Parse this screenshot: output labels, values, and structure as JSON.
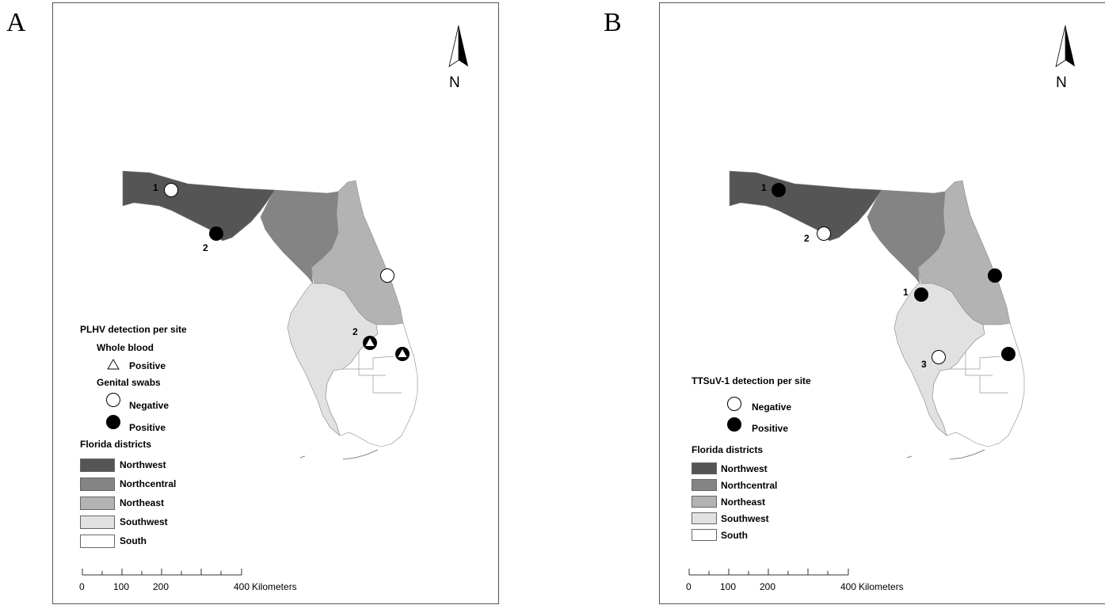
{
  "panels": [
    {
      "letter": "A",
      "north_label": "N",
      "legend": {
        "title": "PLHV detection per site",
        "groups": [
          {
            "heading": "Whole blood",
            "items": [
              {
                "symbol": "triangle-open",
                "label": "Positive"
              }
            ]
          },
          {
            "heading": "Genital swabs",
            "items": [
              {
                "symbol": "circle-open",
                "label": "Negative"
              },
              {
                "symbol": "circle-filled",
                "label": "Positive"
              }
            ]
          }
        ],
        "districts_title": "Florida districts",
        "districts": [
          "Northwest",
          "Northcentral",
          "Northeast",
          "Southwest",
          "South"
        ]
      },
      "scale": {
        "ticks": [
          "0",
          "100",
          "200",
          "400"
        ],
        "unit": "Kilometers"
      },
      "sites": [
        {
          "result": "negative",
          "label": "1"
        },
        {
          "result": "positive",
          "label": "2"
        },
        {
          "result": "negative",
          "label": ""
        },
        {
          "result": "positive",
          "label": "2",
          "whole_blood": "positive"
        },
        {
          "result": "positive",
          "label": "",
          "whole_blood": "positive"
        }
      ]
    },
    {
      "letter": "B",
      "north_label": "N",
      "legend": {
        "title": "TTSuV-1 detection per site",
        "groups": [
          {
            "heading": "",
            "items": [
              {
                "symbol": "circle-open",
                "label": "Negative"
              },
              {
                "symbol": "circle-filled",
                "label": "Positive"
              }
            ]
          }
        ],
        "districts_title": "Florida districts",
        "districts": [
          "Northwest",
          "Northcentral",
          "Northeast",
          "Southwest",
          "South"
        ]
      },
      "scale": {
        "ticks": [
          "0",
          "100",
          "200",
          "400"
        ],
        "unit": "Kilometers"
      },
      "sites": [
        {
          "result": "positive",
          "label": "1"
        },
        {
          "result": "negative",
          "label": "2"
        },
        {
          "result": "positive",
          "label": ""
        },
        {
          "result": "positive",
          "label": "1"
        },
        {
          "result": "negative",
          "label": "3"
        },
        {
          "result": "positive",
          "label": ""
        }
      ]
    }
  ],
  "colors": {
    "Northwest": "#555555",
    "Northcentral": "#848484",
    "Northeast": "#b3b3b3",
    "Southwest": "#e1e1e1",
    "South": "#ffffff",
    "outline": "#ffffff",
    "border": "#888888"
  }
}
